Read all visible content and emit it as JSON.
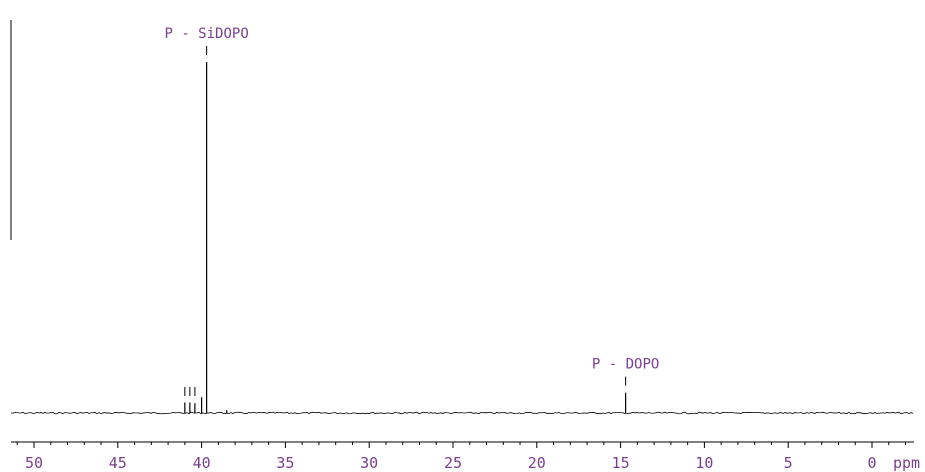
{
  "chart_data": {
    "type": "line",
    "title": "",
    "xlabel": "ppm",
    "ylabel": "",
    "xlim": [
      50,
      0
    ],
    "x_ticks": [
      "50",
      "45",
      "40",
      "35",
      "30",
      "25",
      "20",
      "15",
      "10",
      "5",
      "0"
    ],
    "x_tick_values": [
      50,
      45,
      40,
      35,
      30,
      25,
      20,
      15,
      10,
      5,
      0
    ],
    "x_minor_step": 1,
    "peaks": [
      {
        "x": 39.7,
        "height": 1.0,
        "label": "P - SiDOPO"
      },
      {
        "x": 14.7,
        "height": 0.058,
        "label": "P - DOPO"
      },
      {
        "x": 41.0,
        "height": 0.03,
        "label": ""
      },
      {
        "x": 40.7,
        "height": 0.03,
        "label": ""
      },
      {
        "x": 40.4,
        "height": 0.028,
        "label": ""
      },
      {
        "x": 40.0,
        "height": 0.045,
        "label": ""
      },
      {
        "x": 38.5,
        "height": 0.008,
        "label": ""
      }
    ],
    "integral_marks": [
      41.0,
      40.7,
      40.4
    ],
    "colors": {
      "axis": "#000000",
      "labels": "#7a3f8f",
      "trace": "#000000"
    }
  }
}
